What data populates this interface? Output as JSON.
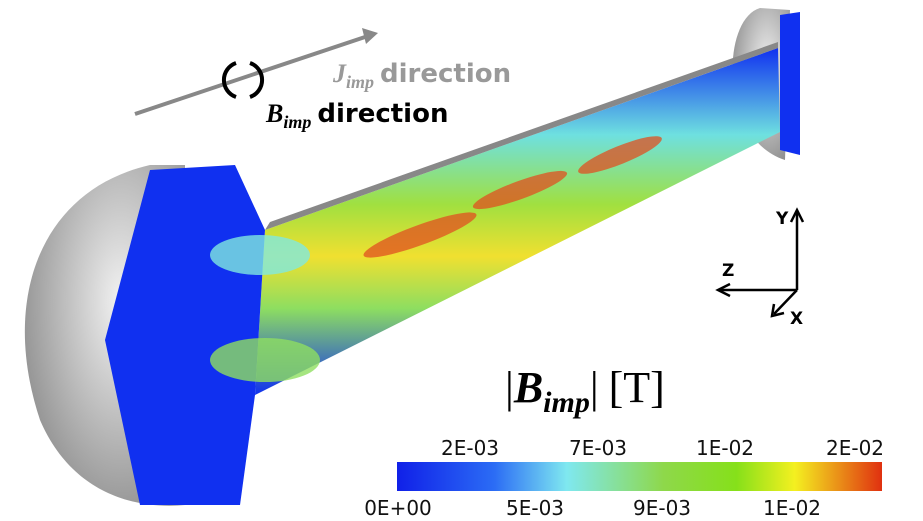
{
  "annotations": {
    "current": {
      "symbol": "J",
      "subscript": "imp",
      "text": "direction"
    },
    "field": {
      "symbol": "B",
      "subscript": "imp",
      "text": "direction"
    }
  },
  "axes": {
    "y": "Y",
    "z": "Z",
    "x": "X"
  },
  "colorbar": {
    "title": {
      "symbol": "B",
      "subscript": "imp",
      "unit": "[T]"
    },
    "top_labels": [
      "2E-03",
      "7E-03",
      "1E-02",
      "2E-02"
    ],
    "bottom_labels": [
      "0E+00",
      "5E-03",
      "9E-03",
      "1E-02"
    ]
  }
}
